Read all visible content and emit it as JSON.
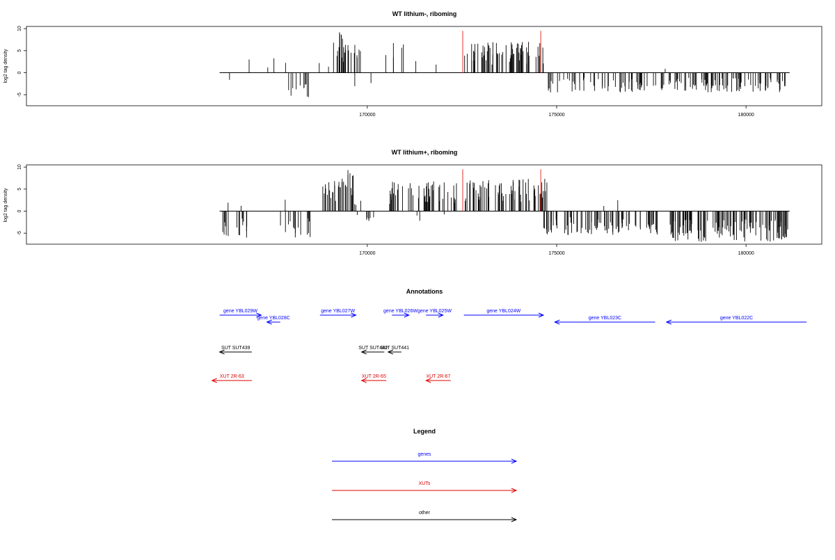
{
  "colors": {
    "signal": "#000000",
    "marker": "#e8332a",
    "gene": "#0000ff",
    "xut": "#dd0000",
    "other": "#000000"
  },
  "chart_data": [
    {
      "type": "bar",
      "title": "WT lithium-, riboming",
      "ylabel": "log2 tag density",
      "xlim": [
        161000,
        182000
      ],
      "ylim": [
        -7.5,
        10.5
      ],
      "x_ticks": [
        170000,
        175000,
        180000
      ],
      "x_tick_labels": [
        "170000",
        "175000",
        "180000"
      ],
      "y_ticks": [
        -5,
        0,
        5,
        10
      ],
      "y_tick_labels": [
        "-5",
        "0",
        "5",
        "10"
      ],
      "data_range": [
        166100,
        181150
      ],
      "markers": [
        172520,
        174580
      ],
      "marker_height": 9.5,
      "regions": [
        {
          "from": 166100,
          "to": 166500,
          "max": -3,
          "dir": -1,
          "density": 0.05
        },
        {
          "from": 166500,
          "to": 167100,
          "max": 3,
          "dir": 1,
          "density": 0.04
        },
        {
          "from": 167100,
          "to": 167500,
          "max": 1.5,
          "dir": 1,
          "density": 0.03
        },
        {
          "from": 167500,
          "to": 167700,
          "max": 3.5,
          "dir": 1,
          "density": 0.08
        },
        {
          "from": 167700,
          "to": 167900,
          "max": 2.5,
          "dir": 1,
          "density": 0.06
        },
        {
          "from": 167850,
          "to": 168500,
          "max": -6,
          "dir": -1,
          "density": 0.3
        },
        {
          "from": 168700,
          "to": 168900,
          "max": 4,
          "dir": 1,
          "density": 0.05
        },
        {
          "from": 168900,
          "to": 169100,
          "max": 2,
          "dir": 1,
          "density": 0.05
        },
        {
          "from": 169100,
          "to": 169500,
          "max": 9.5,
          "dir": 1,
          "density": 0.9
        },
        {
          "from": 169500,
          "to": 169850,
          "max": 6.5,
          "dir": 1,
          "density": 0.4
        },
        {
          "from": 169500,
          "to": 170100,
          "max": -3.5,
          "dir": -1,
          "density": 0.05
        },
        {
          "from": 170450,
          "to": 170650,
          "max": 5.5,
          "dir": 1,
          "density": 0.1
        },
        {
          "from": 170650,
          "to": 171100,
          "max": 7,
          "dir": 1,
          "density": 0.15
        },
        {
          "from": 171100,
          "to": 171500,
          "max": 3,
          "dir": 1,
          "density": 0.03
        },
        {
          "from": 171600,
          "to": 172300,
          "max": 2,
          "dir": 1,
          "density": 0.02
        },
        {
          "from": 172550,
          "to": 174700,
          "max": 7,
          "dir": 1,
          "density": 0.55
        },
        {
          "from": 174700,
          "to": 177850,
          "max": -4.5,
          "dir": -1,
          "density": 0.35
        },
        {
          "from": 177850,
          "to": 177950,
          "max": 2.5,
          "dir": 1,
          "density": 0.1
        },
        {
          "from": 177950,
          "to": 181150,
          "max": -4.5,
          "dir": -1,
          "density": 0.5
        }
      ]
    },
    {
      "type": "bar",
      "title": "WT lithium+, riboming",
      "ylabel": "log2 tag density",
      "xlim": [
        161000,
        182000
      ],
      "ylim": [
        -7.5,
        10.5
      ],
      "x_ticks": [
        170000,
        175000,
        180000
      ],
      "x_tick_labels": [
        "170000",
        "175000",
        "180000"
      ],
      "y_ticks": [
        -5,
        0,
        5,
        10
      ],
      "y_tick_labels": [
        "-5",
        "0",
        "5",
        "10"
      ],
      "data_range": [
        166100,
        181150
      ],
      "markers": [
        172520,
        174580
      ],
      "marker_height": 9.5,
      "regions": [
        {
          "from": 166100,
          "to": 166900,
          "max": -6,
          "dir": -1,
          "density": 0.35
        },
        {
          "from": 166100,
          "to": 166900,
          "max": 2.5,
          "dir": 1,
          "density": 0.05
        },
        {
          "from": 167700,
          "to": 168500,
          "max": -6,
          "dir": -1,
          "density": 0.35
        },
        {
          "from": 167700,
          "to": 167900,
          "max": 3,
          "dir": 1,
          "density": 0.1
        },
        {
          "from": 168750,
          "to": 169300,
          "max": 7,
          "dir": 1,
          "density": 0.6
        },
        {
          "from": 169300,
          "to": 169650,
          "max": 9.5,
          "dir": 1,
          "density": 0.8
        },
        {
          "from": 169650,
          "to": 169850,
          "max": 4,
          "dir": 1,
          "density": 0.3
        },
        {
          "from": 169600,
          "to": 170200,
          "max": -3,
          "dir": -1,
          "density": 0.2
        },
        {
          "from": 170250,
          "to": 170600,
          "max": 2,
          "dir": 1,
          "density": 0.05
        },
        {
          "from": 170600,
          "to": 172520,
          "max": 7,
          "dir": 1,
          "density": 0.45
        },
        {
          "from": 171300,
          "to": 172300,
          "max": -3,
          "dir": -1,
          "density": 0.05
        },
        {
          "from": 172550,
          "to": 174750,
          "max": 7.5,
          "dir": 1,
          "density": 0.55
        },
        {
          "from": 174650,
          "to": 177750,
          "max": -5.5,
          "dir": -1,
          "density": 0.5
        },
        {
          "from": 176000,
          "to": 177400,
          "max": 3,
          "dir": 1,
          "density": 0.03
        },
        {
          "from": 177950,
          "to": 181150,
          "max": -7,
          "dir": -1,
          "density": 0.7
        }
      ]
    }
  ],
  "annotations": {
    "title": "Annotations",
    "xlim": [
      161000,
      182000
    ],
    "rows": [
      {
        "kind": "gene",
        "items": [
          {
            "label": "gene YBL029W",
            "from": 166100,
            "to": 167200,
            "dir": 1,
            "level": 0
          },
          {
            "label": "gene YBL028C",
            "from": 167350,
            "to": 167700,
            "dir": -1,
            "level": 1
          },
          {
            "label": "gene YBL027W",
            "from": 168750,
            "to": 169700,
            "dir": 1,
            "level": 0
          },
          {
            "label": "gene YBL026W",
            "from": 170650,
            "to": 171100,
            "dir": 1,
            "level": 0
          },
          {
            "label": "gene YBL025W",
            "from": 171550,
            "to": 172000,
            "dir": 1,
            "level": 0
          },
          {
            "label": "gene YBL024W",
            "from": 172550,
            "to": 174650,
            "dir": 1,
            "level": 0
          },
          {
            "label": "gene YBL023C",
            "from": 174950,
            "to": 177600,
            "dir": -1,
            "level": 1
          },
          {
            "label": "gene YBL022C",
            "from": 177900,
            "to": 181600,
            "dir": -1,
            "level": 1
          }
        ]
      },
      {
        "kind": "other",
        "items": [
          {
            "label": "SUT SUT439",
            "from": 166100,
            "to": 166950,
            "dir": -1,
            "level": 0
          },
          {
            "label": "SUT SUT440",
            "from": 169850,
            "to": 170450,
            "dir": -1,
            "level": 0
          },
          {
            "label": "SUT SUT441",
            "from": 170550,
            "to": 170900,
            "dir": -1,
            "level": 0
          }
        ]
      },
      {
        "kind": "xut",
        "items": [
          {
            "label": "XUT 2R-63",
            "from": 165900,
            "to": 166950,
            "dir": -1,
            "level": 0
          },
          {
            "label": "XUT 2R-65",
            "from": 169850,
            "to": 170500,
            "dir": -1,
            "level": 0
          },
          {
            "label": "XUT 2R-67",
            "from": 171550,
            "to": 172200,
            "dir": -1,
            "level": 0
          }
        ]
      }
    ]
  },
  "legend": {
    "title": "Legend",
    "entries": [
      {
        "label": "genes",
        "kind": "gene"
      },
      {
        "label": "XUTs",
        "kind": "xut"
      },
      {
        "label": "other",
        "kind": "other"
      }
    ]
  }
}
